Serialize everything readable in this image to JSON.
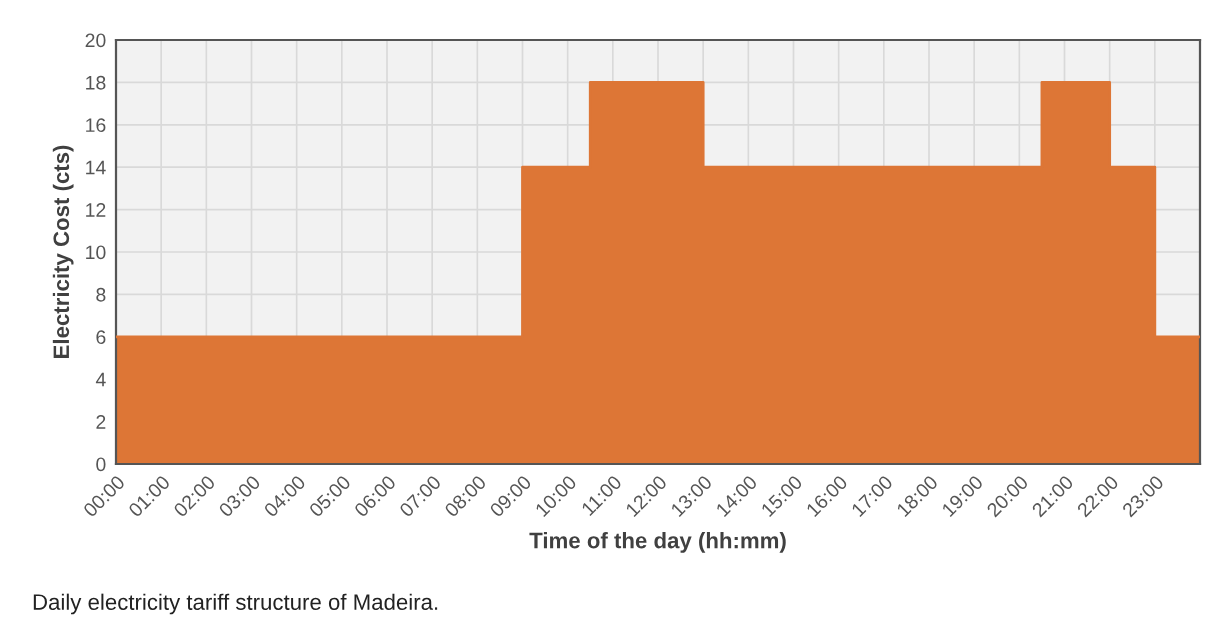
{
  "chart_data": {
    "type": "area",
    "xlabel": "Time of the day (hh:mm)",
    "ylabel": "Electricity Cost (cts)",
    "x": [
      0,
      9,
      9,
      10.5,
      10.5,
      13,
      13,
      20.5,
      20.5,
      22,
      22,
      23,
      23,
      24
    ],
    "series": [
      {
        "color": "#dd7636",
        "values": [
          6,
          6,
          14,
          14,
          18,
          18,
          14,
          14,
          18,
          18,
          14,
          14,
          6,
          6
        ]
      }
    ],
    "xlim": [
      0,
      24
    ],
    "xticks": [
      {
        "value": 0,
        "label": "00:00"
      },
      {
        "value": 1,
        "label": "01:00"
      },
      {
        "value": 2,
        "label": "02:00"
      },
      {
        "value": 3,
        "label": "03:00"
      },
      {
        "value": 4,
        "label": "04:00"
      },
      {
        "value": 5,
        "label": "05:00"
      },
      {
        "value": 6,
        "label": "06:00"
      },
      {
        "value": 7,
        "label": "07:00"
      },
      {
        "value": 8,
        "label": "08:00"
      },
      {
        "value": 9,
        "label": "09:00"
      },
      {
        "value": 10,
        "label": "10:00"
      },
      {
        "value": 11,
        "label": "11:00"
      },
      {
        "value": 12,
        "label": "12:00"
      },
      {
        "value": 13,
        "label": "13:00"
      },
      {
        "value": 14,
        "label": "14:00"
      },
      {
        "value": 15,
        "label": "15:00"
      },
      {
        "value": 16,
        "label": "16:00"
      },
      {
        "value": 17,
        "label": "17:00"
      },
      {
        "value": 18,
        "label": "18:00"
      },
      {
        "value": 19,
        "label": "19:00"
      },
      {
        "value": 20,
        "label": "20:00"
      },
      {
        "value": 21,
        "label": "21:00"
      },
      {
        "value": 22,
        "label": "22:00"
      },
      {
        "value": 23,
        "label": "23:00"
      }
    ],
    "ylim": [
      0,
      20
    ],
    "yticks": [
      0,
      2,
      4,
      6,
      8,
      10,
      12,
      14,
      16,
      18,
      20
    ],
    "grid": true,
    "annotations": [
      "Daily electricity tariff structure of Madeira."
    ]
  }
}
